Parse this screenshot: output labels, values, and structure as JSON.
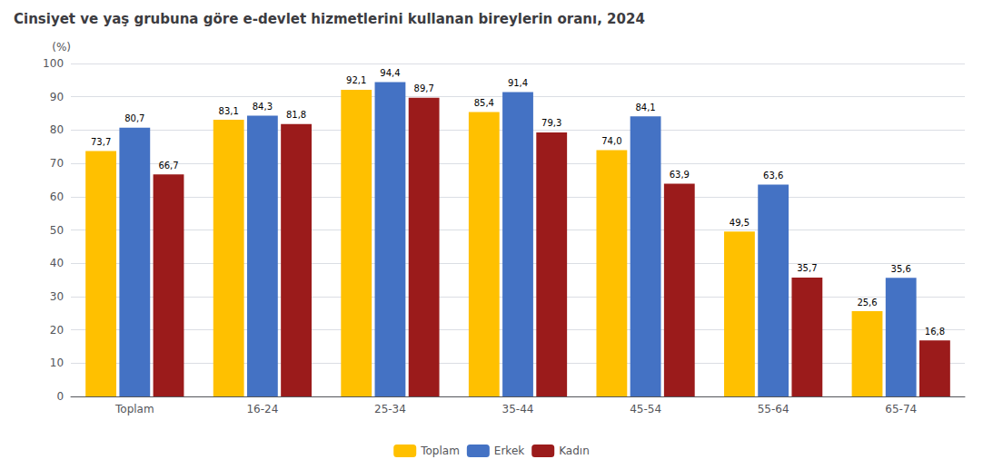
{
  "chart_data": {
    "type": "bar",
    "title": "Cinsiyet ve yaş grubuna göre e-devlet hizmetlerini kullanan bireylerin oranı, 2024",
    "ylabel": "(%)",
    "categories": [
      "Toplam",
      "16-24",
      "25-34",
      "35-44",
      "45-54",
      "55-64",
      "65-74"
    ],
    "series": [
      {
        "name": "Toplam",
        "color": "#FFC000",
        "values": [
          73.7,
          83.1,
          92.1,
          85.4,
          74.0,
          49.5,
          25.6
        ],
        "value_labels": [
          "73,7",
          "83,1",
          "92,1",
          "85,4",
          "74,0",
          "49,5",
          "25,6"
        ]
      },
      {
        "name": "Erkek",
        "color": "#4472C4",
        "values": [
          80.7,
          84.3,
          94.4,
          91.4,
          84.1,
          63.6,
          35.6
        ],
        "value_labels": [
          "80,7",
          "84,3",
          "94,4",
          "91,4",
          "84,1",
          "63,6",
          "35,6"
        ]
      },
      {
        "name": "Kadın",
        "color": "#9B1B1B",
        "values": [
          66.7,
          81.8,
          89.7,
          79.3,
          63.9,
          35.7,
          16.8
        ],
        "value_labels": [
          "66,7",
          "81,8",
          "89,7",
          "79,3",
          "63,9",
          "35,7",
          "16,8"
        ]
      }
    ],
    "ylim": [
      0,
      100
    ],
    "yticks": [
      0,
      10,
      20,
      30,
      40,
      50,
      60,
      70,
      80,
      90,
      100
    ],
    "grid": true,
    "legend": "bottom",
    "data_labels": true
  }
}
